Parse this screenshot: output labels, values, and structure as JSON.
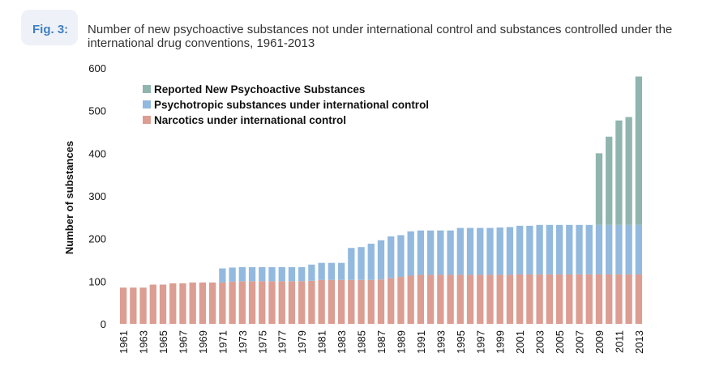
{
  "figure": {
    "label": "Fig. 3:",
    "title": "Number of new psychoactive substances not under international control and substances controlled under the international drug conventions, 1961-2013"
  },
  "chart_data": {
    "type": "bar",
    "stacked": true,
    "ylabel": "Number of substances",
    "xlabel": "",
    "ylim": [
      0,
      600
    ],
    "yticks": [
      0,
      100,
      200,
      300,
      400,
      500,
      600
    ],
    "categories": [
      "1961",
      "1962",
      "1963",
      "1964",
      "1965",
      "1966",
      "1967",
      "1968",
      "1969",
      "1970",
      "1971",
      "1972",
      "1973",
      "1974",
      "1975",
      "1976",
      "1977",
      "1978",
      "1979",
      "1980",
      "1981",
      "1982",
      "1983",
      "1984",
      "1985",
      "1986",
      "1987",
      "1988",
      "1989",
      "1990",
      "1991",
      "1992",
      "1993",
      "1994",
      "1995",
      "1996",
      "1997",
      "1998",
      "1999",
      "2000",
      "2001",
      "2002",
      "2003",
      "2004",
      "2005",
      "2006",
      "2007",
      "2008",
      "2009",
      "2010",
      "2011",
      "2012",
      "2013"
    ],
    "xtick_labels": [
      "1961",
      "1963",
      "1965",
      "1967",
      "1969",
      "1971",
      "1973",
      "1975",
      "1977",
      "1979",
      "1981",
      "1983",
      "1985",
      "1987",
      "1989",
      "1991",
      "1993",
      "1995",
      "1997",
      "1999",
      "2001",
      "2003",
      "2005",
      "2007",
      "2009",
      "2011",
      "2013"
    ],
    "legend_position": "top-left",
    "series": [
      {
        "name": "Narcotics under international control",
        "color": "#dc9d92",
        "values": [
          85,
          85,
          85,
          92,
          92,
          95,
          95,
          97,
          97,
          97,
          97,
          99,
          100,
          100,
          100,
          100,
          100,
          100,
          100,
          101,
          103,
          103,
          103,
          103,
          103,
          103,
          104,
          107,
          110,
          113,
          115,
          115,
          115,
          115,
          115,
          115,
          115,
          115,
          115,
          115,
          116,
          116,
          116,
          116,
          116,
          116,
          116,
          116,
          116,
          116,
          116,
          116,
          116
        ]
      },
      {
        "name": "Psychotropic substances under international control",
        "color": "#93b9de",
        "values": [
          0,
          0,
          0,
          0,
          0,
          0,
          0,
          0,
          0,
          0,
          33,
          33,
          33,
          33,
          33,
          33,
          33,
          33,
          33,
          38,
          40,
          40,
          40,
          75,
          77,
          85,
          92,
          98,
          98,
          104,
          104,
          104,
          104,
          104,
          110,
          110,
          110,
          110,
          111,
          112,
          114,
          114,
          116,
          116,
          116,
          116,
          116,
          116,
          116,
          116,
          116,
          116,
          116
        ]
      },
      {
        "name": "Reported New Psychoactive Substances",
        "color": "#8fb5ae",
        "values": [
          0,
          0,
          0,
          0,
          0,
          0,
          0,
          0,
          0,
          0,
          0,
          0,
          0,
          0,
          0,
          0,
          0,
          0,
          0,
          0,
          0,
          0,
          0,
          0,
          0,
          0,
          0,
          0,
          0,
          0,
          0,
          0,
          0,
          0,
          0,
          0,
          0,
          0,
          0,
          0,
          0,
          0,
          0,
          0,
          0,
          0,
          0,
          0,
          168,
          207,
          245,
          253,
          348
        ]
      }
    ],
    "legend_order": [
      "Reported New Psychoactive Substances",
      "Psychotropic substances under international control",
      "Narcotics under international control"
    ]
  }
}
